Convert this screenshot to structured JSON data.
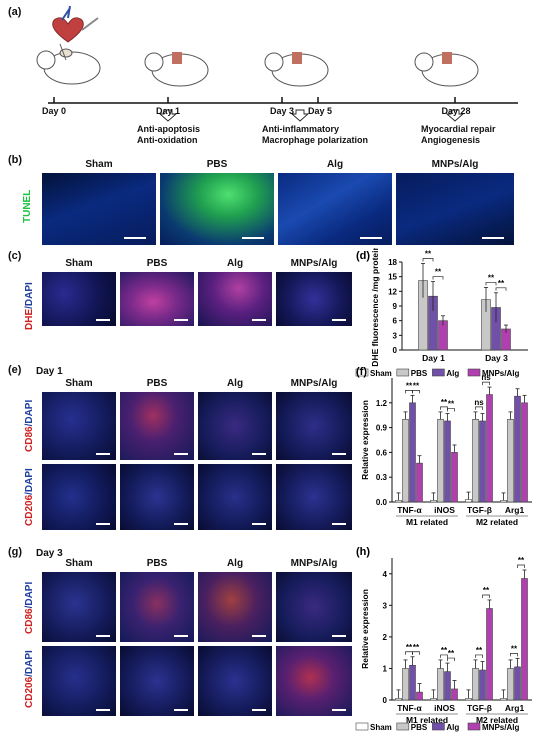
{
  "panel_a": {
    "label": "(a)",
    "days": [
      "Day 0",
      "Day 1",
      "Day 3",
      "Day 5",
      "Day 28"
    ],
    "events": [
      [
        "Anti-apoptosis",
        "Anti-oxidation"
      ],
      [
        "Anti-inflammatory",
        "Macrophage polarization"
      ],
      [
        "Myocardial repair",
        "Angiogenesis"
      ]
    ]
  },
  "panel_b": {
    "label": "(b)",
    "row_label": "TUNEL",
    "groups": [
      "Sham",
      "PBS",
      "Alg",
      "MNPs/Alg"
    ]
  },
  "panel_c": {
    "label": "(c)",
    "row_label": "DHE/DAPI",
    "groups": [
      "Sham",
      "PBS",
      "Alg",
      "MNPs/Alg"
    ]
  },
  "panel_e": {
    "label": "(e)",
    "subtitle": "Day 1",
    "row_labels": [
      "CD86/DAPI",
      "CD206/DAPI"
    ],
    "groups": [
      "Sham",
      "PBS",
      "Alg",
      "MNPs/Alg"
    ]
  },
  "panel_g": {
    "label": "(g)",
    "subtitle": "Day 3",
    "row_labels": [
      "CD86/DAPI",
      "CD206/DAPI"
    ],
    "groups": [
      "Sham",
      "PBS",
      "Alg",
      "MNPs/Alg"
    ]
  },
  "legend_groups": [
    "Sham",
    "PBS",
    "Alg",
    "MNPs/Alg"
  ],
  "colors": {
    "sham": "#ffffff",
    "pbs": "#c8c8c8",
    "alg": "#7050a8",
    "mnps": "#b040b0"
  },
  "chart_data": [
    {
      "panel": "(d)",
      "type": "bar",
      "ylabel": "DHE fluorescence /mg protein",
      "ylim": [
        0,
        18
      ],
      "yticks": [
        0,
        3,
        6,
        9,
        12,
        15,
        18
      ],
      "categories": [
        "Day 1",
        "Day 3"
      ],
      "series": [
        {
          "name": "PBS",
          "values": [
            14.2,
            10.3
          ],
          "errors": [
            3.5,
            2.5
          ]
        },
        {
          "name": "Alg",
          "values": [
            11.0,
            8.7
          ],
          "errors": [
            3.0,
            3.0
          ]
        },
        {
          "name": "MNPs/Alg",
          "values": [
            6.0,
            4.3
          ],
          "errors": [
            1.0,
            0.8
          ]
        }
      ],
      "significance": [
        {
          "category": 0,
          "pairs": [
            "**",
            "**"
          ]
        },
        {
          "category": 1,
          "pairs": [
            "**",
            "**"
          ]
        }
      ],
      "legend": "bottom"
    },
    {
      "panel": "(f)",
      "type": "bar",
      "ylabel": "Relative expression",
      "ylim": [
        0,
        1.5
      ],
      "yticks": [
        0.0,
        0.3,
        0.6,
        0.9,
        1.2
      ],
      "categories": [
        "TNF-α",
        "iNOS",
        "TGF-β",
        "Arg1"
      ],
      "category_groups": [
        "M1 related",
        "M2 related"
      ],
      "series": [
        {
          "name": "Sham",
          "values": [
            0.02,
            0.02,
            0.03,
            0.02
          ]
        },
        {
          "name": "PBS",
          "values": [
            1.0,
            1.0,
            1.0,
            1.0
          ]
        },
        {
          "name": "Alg",
          "values": [
            1.2,
            0.98,
            0.98,
            1.28
          ]
        },
        {
          "name": "MNPs/Alg",
          "values": [
            0.47,
            0.6,
            1.3,
            1.2
          ]
        }
      ],
      "significance_labels": [
        "**",
        "**",
        "**",
        "**",
        "ns",
        "ns"
      ]
    },
    {
      "panel": "(h)",
      "type": "bar",
      "ylabel": "Relative expression",
      "ylim": [
        0,
        4.5
      ],
      "yticks": [
        0,
        1,
        2,
        3,
        4
      ],
      "categories": [
        "TNF-α",
        "iNOS",
        "TGF-β",
        "Arg1"
      ],
      "category_groups": [
        "M1 related",
        "M2 related"
      ],
      "series": [
        {
          "name": "Sham",
          "values": [
            0.05,
            0.05,
            0.05,
            0.05
          ]
        },
        {
          "name": "PBS",
          "values": [
            1.0,
            1.0,
            1.0,
            1.0
          ]
        },
        {
          "name": "Alg",
          "values": [
            1.1,
            0.9,
            0.95,
            1.05
          ]
        },
        {
          "name": "MNPs/Alg",
          "values": [
            0.25,
            0.35,
            2.9,
            3.85
          ]
        }
      ],
      "significance_labels": [
        "**",
        "**",
        "**",
        "**",
        "**",
        "**",
        "**",
        "**"
      ],
      "legend": "bottom"
    }
  ]
}
